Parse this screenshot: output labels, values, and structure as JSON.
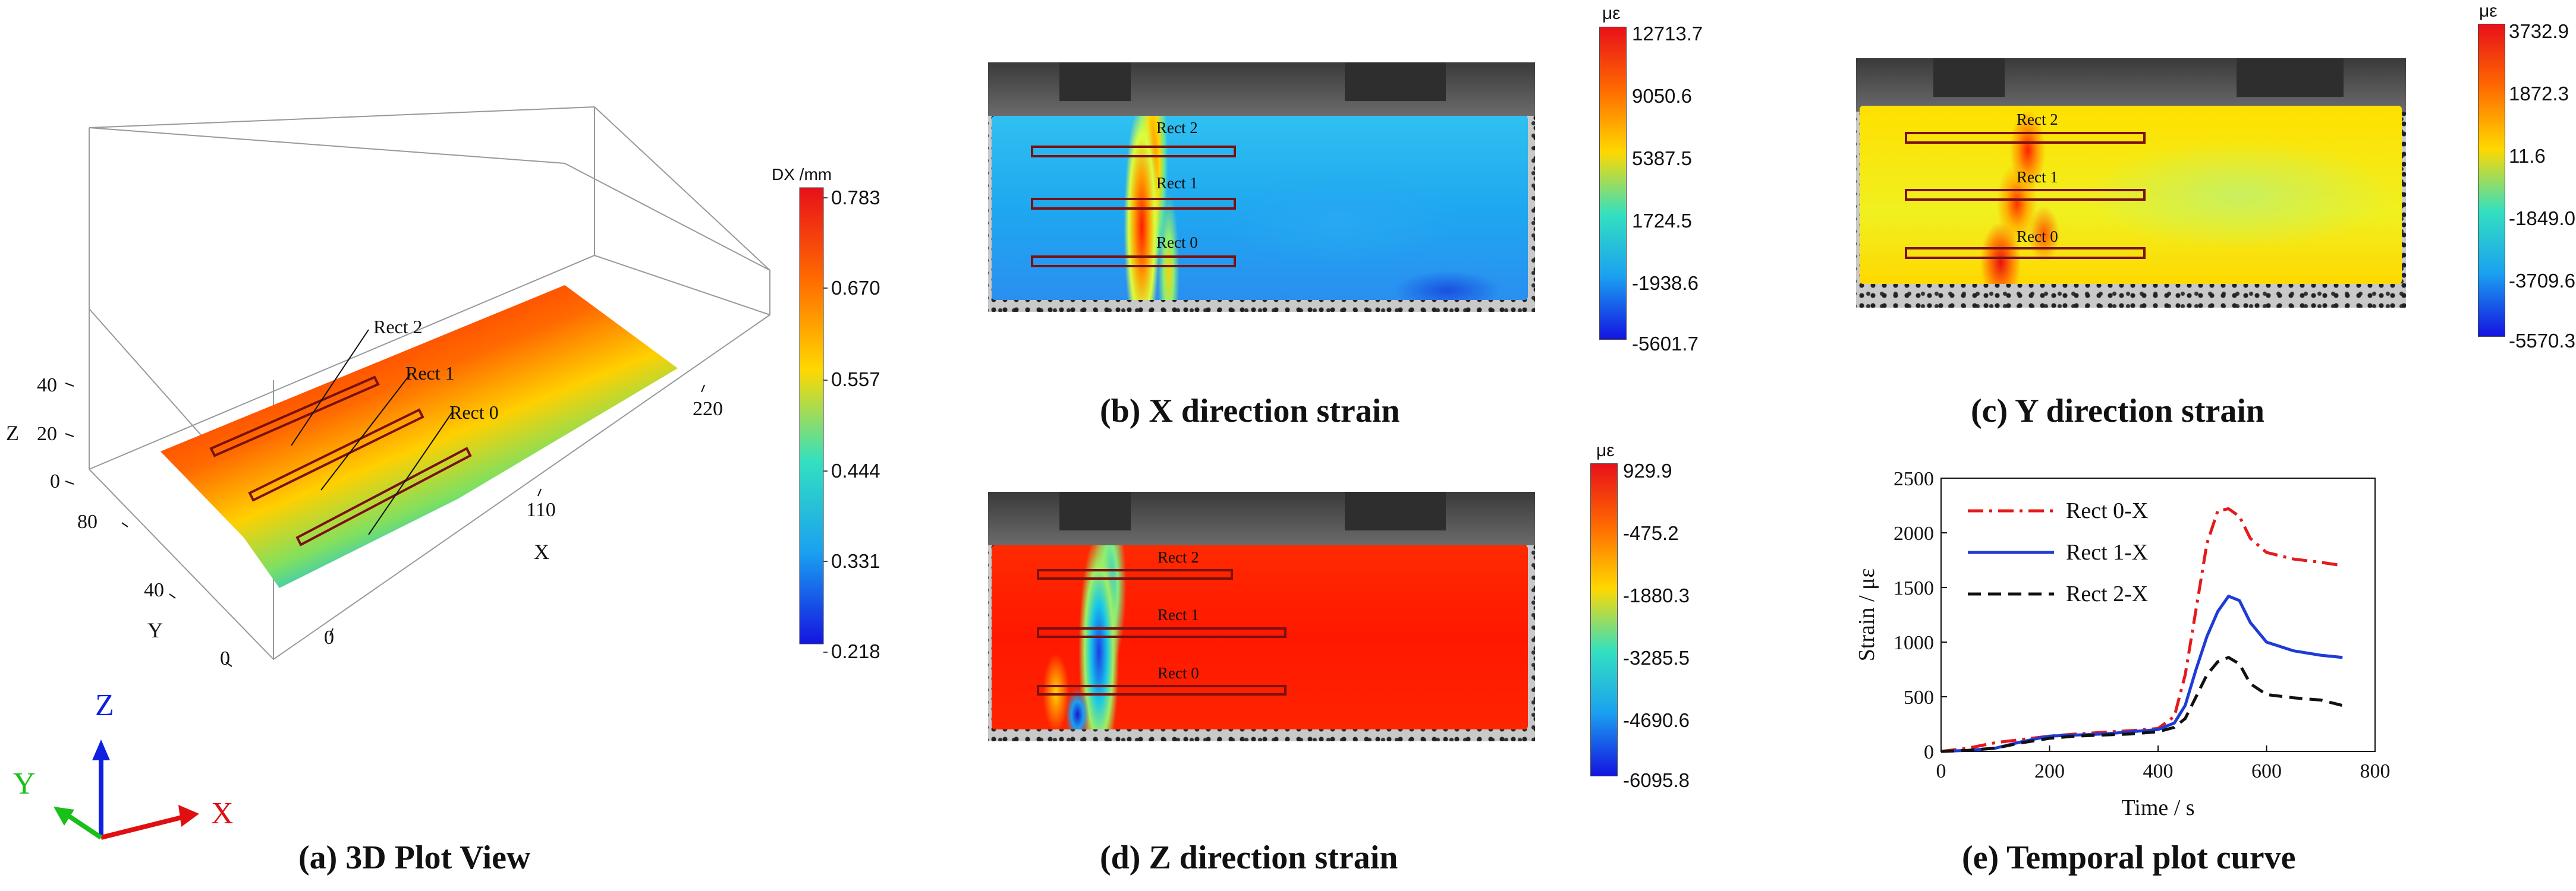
{
  "panel_a": {
    "caption": "(a) 3D Plot View",
    "colorbar": {
      "unit": "DX /mm",
      "labels": [
        "0.783",
        "0.670",
        "0.557",
        "0.444",
        "0.331",
        "0.218"
      ]
    },
    "rect_labels": [
      "Rect 2",
      "Rect 1",
      "Rect 0"
    ],
    "axis_x": {
      "label": "X",
      "ticks": [
        "0",
        "110",
        "220"
      ]
    },
    "axis_y": {
      "label": "Y",
      "ticks": [
        "0",
        "40",
        "80"
      ]
    },
    "axis_z": {
      "label": "Z",
      "ticks": [
        "0",
        "20",
        "40"
      ]
    },
    "triad": {
      "x": "X",
      "y": "Y",
      "z": "Z"
    }
  },
  "panel_b": {
    "caption": "(b) X direction strain",
    "colorbar": {
      "unit": "με",
      "labels": [
        "12713.7",
        "9050.6",
        "5387.5",
        "1724.5",
        "-1938.6",
        "-5601.7"
      ]
    },
    "rect_labels": [
      "Rect 2",
      "Rect 1",
      "Rect 0"
    ]
  },
  "panel_c": {
    "caption": "(c) Y direction strain",
    "colorbar": {
      "unit": "με",
      "labels": [
        "3732.9",
        "1872.3",
        "11.6",
        "-1849.0",
        "-3709.6",
        "-5570.3"
      ]
    },
    "rect_labels": [
      "Rect 2",
      "Rect 1",
      "Rect 0"
    ]
  },
  "panel_d": {
    "caption": "(d) Z direction strain",
    "colorbar": {
      "unit": "με",
      "labels": [
        "929.9",
        "-475.2",
        "-1880.3",
        "-3285.5",
        "-4690.6",
        "-6095.8"
      ]
    },
    "rect_labels": [
      "Rect 2",
      "Rect 1",
      "Rect 0"
    ]
  },
  "panel_e": {
    "caption": "(e) Temporal plot curve"
  },
  "chart_data": {
    "type": "line",
    "title": "",
    "xlabel": "Time / s",
    "ylabel": "Strain / με",
    "xlim": [
      0,
      800
    ],
    "ylim": [
      0,
      2500
    ],
    "xticks": [
      0,
      200,
      400,
      600,
      800
    ],
    "yticks": [
      0,
      500,
      1000,
      1500,
      2000,
      2500
    ],
    "legend_position": "top-left",
    "series": [
      {
        "name": "Rect 0-X",
        "color": "#e41a1c",
        "style": "dash-dot",
        "x": [
          0,
          50,
          100,
          150,
          200,
          250,
          300,
          350,
          400,
          430,
          450,
          470,
          490,
          510,
          530,
          550,
          570,
          600,
          650,
          700,
          740
        ],
        "y": [
          0,
          30,
          80,
          110,
          140,
          160,
          175,
          190,
          210,
          320,
          700,
          1300,
          1900,
          2200,
          2220,
          2150,
          1950,
          1820,
          1760,
          1730,
          1700
        ]
      },
      {
        "name": "Rect 1-X",
        "color": "#1f3bd6",
        "style": "solid",
        "x": [
          0,
          50,
          100,
          150,
          200,
          250,
          300,
          350,
          400,
          430,
          450,
          470,
          490,
          510,
          530,
          550,
          570,
          600,
          650,
          700,
          740
        ],
        "y": [
          0,
          10,
          30,
          90,
          140,
          150,
          160,
          180,
          200,
          260,
          420,
          750,
          1050,
          1280,
          1420,
          1380,
          1180,
          1000,
          920,
          880,
          860
        ]
      },
      {
        "name": "Rect 2-X",
        "color": "#111111",
        "style": "dash",
        "x": [
          0,
          50,
          100,
          150,
          200,
          250,
          300,
          350,
          400,
          430,
          450,
          470,
          490,
          510,
          530,
          550,
          570,
          600,
          650,
          700,
          740
        ],
        "y": [
          0,
          10,
          30,
          80,
          120,
          140,
          150,
          160,
          180,
          220,
          300,
          500,
          700,
          820,
          860,
          800,
          620,
          520,
          490,
          470,
          420
        ]
      }
    ]
  }
}
